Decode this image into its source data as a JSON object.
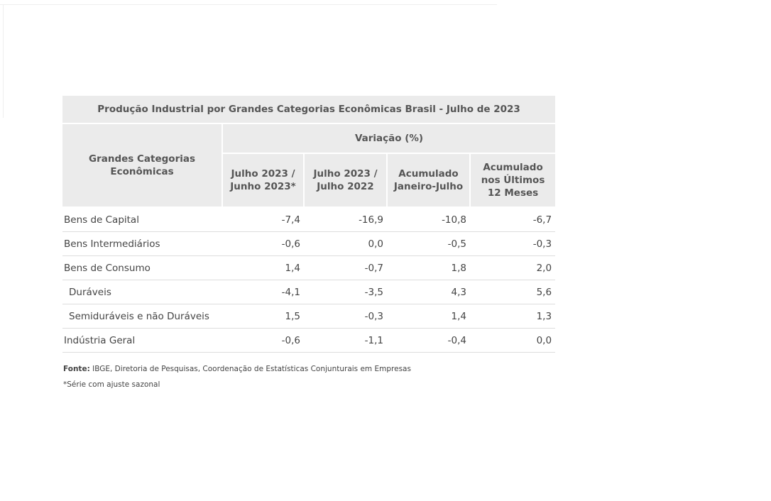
{
  "table": {
    "title": "Produção Industrial por Grandes Categorias Econômicas  Brasil - Julho de 2023",
    "row_header_lines": [
      "Grandes Categorias",
      "Econômicas"
    ],
    "group_header": "Variação (%)",
    "columns": [
      [
        "Julho 2023 /",
        "Junho 2023*"
      ],
      [
        "Julho 2023 /",
        "Julho 2022"
      ],
      [
        "Acumulado",
        "Janeiro-Julho"
      ],
      [
        "Acumulado",
        "nos Últimos",
        "12 Meses"
      ]
    ],
    "rows": [
      [
        "Bens de Capital",
        "-7,4",
        "-16,9",
        "-10,8",
        "-6,7"
      ],
      [
        "Bens Intermediários",
        "-0,6",
        "0,0",
        "-0,5",
        "-0,3"
      ],
      [
        "Bens de Consumo",
        "1,4",
        "-0,7",
        "1,8",
        "2,0"
      ],
      [
        "Duráveis",
        "-4,1",
        "-3,5",
        "4,3",
        "5,6"
      ],
      [
        "Semiduráveis e não Duráveis",
        "1,5",
        "-0,3",
        "1,4",
        "1,3"
      ],
      [
        "Indústria Geral",
        "-0,6",
        "-1,1",
        "-0,4",
        "0,0"
      ]
    ]
  },
  "footnotes": {
    "source_label": "Fonte:",
    "source_text": "IBGE, Diretoria de Pesquisas, Coordenação de Estatísticas Conjunturais em Empresas",
    "note": "*Série com ajuste sazonal"
  }
}
